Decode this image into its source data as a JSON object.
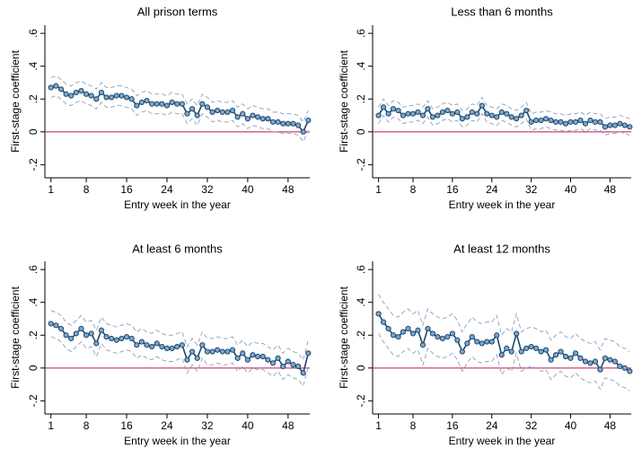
{
  "chart_data": [
    {
      "type": "line",
      "title": "All prison terms",
      "x_label": "Entry week in the year",
      "y_label": "First-stage coefficient",
      "x": [
        1,
        2,
        3,
        4,
        5,
        6,
        7,
        8,
        9,
        10,
        11,
        12,
        13,
        14,
        15,
        16,
        17,
        18,
        19,
        20,
        21,
        22,
        23,
        24,
        25,
        26,
        27,
        28,
        29,
        30,
        31,
        32,
        33,
        34,
        35,
        36,
        37,
        38,
        39,
        40,
        41,
        42,
        43,
        44,
        45,
        46,
        47,
        48,
        49,
        50,
        51,
        52
      ],
      "values": [
        0.27,
        0.28,
        0.26,
        0.23,
        0.22,
        0.24,
        0.25,
        0.23,
        0.22,
        0.2,
        0.24,
        0.21,
        0.21,
        0.22,
        0.22,
        0.21,
        0.2,
        0.16,
        0.18,
        0.19,
        0.17,
        0.17,
        0.17,
        0.16,
        0.18,
        0.17,
        0.17,
        0.11,
        0.14,
        0.1,
        0.17,
        0.15,
        0.12,
        0.13,
        0.12,
        0.12,
        0.13,
        0.09,
        0.11,
        0.08,
        0.1,
        0.09,
        0.08,
        0.08,
        0.06,
        0.06,
        0.05,
        0.05,
        0.05,
        0.04,
        0.0,
        0.07
      ],
      "ci_lower": [
        0.21,
        0.22,
        0.2,
        0.17,
        0.16,
        0.18,
        0.19,
        0.17,
        0.16,
        0.14,
        0.18,
        0.15,
        0.15,
        0.16,
        0.16,
        0.15,
        0.14,
        0.1,
        0.12,
        0.13,
        0.11,
        0.11,
        0.11,
        0.1,
        0.12,
        0.11,
        0.11,
        0.05,
        0.08,
        0.04,
        0.11,
        0.09,
        0.06,
        0.07,
        0.06,
        0.06,
        0.07,
        0.03,
        0.05,
        0.02,
        0.04,
        0.03,
        0.02,
        0.02,
        0.0,
        0.0,
        -0.01,
        -0.01,
        -0.01,
        -0.02,
        -0.06,
        0.01
      ],
      "ci_upper": [
        0.33,
        0.34,
        0.32,
        0.29,
        0.28,
        0.3,
        0.31,
        0.29,
        0.28,
        0.26,
        0.3,
        0.27,
        0.27,
        0.28,
        0.28,
        0.27,
        0.26,
        0.22,
        0.24,
        0.25,
        0.23,
        0.23,
        0.23,
        0.22,
        0.24,
        0.23,
        0.23,
        0.17,
        0.2,
        0.16,
        0.23,
        0.21,
        0.18,
        0.19,
        0.18,
        0.18,
        0.19,
        0.15,
        0.17,
        0.14,
        0.16,
        0.15,
        0.14,
        0.14,
        0.12,
        0.12,
        0.11,
        0.11,
        0.11,
        0.1,
        0.06,
        0.13
      ],
      "color": "#1a476f",
      "marker_fill": "#7fa6c9",
      "ci_color": "#8ca0bd",
      "hline": {
        "value": 0,
        "color": "#c8104e"
      },
      "xlim": [
        -0.2,
        52.3
      ],
      "ylim": [
        -0.28,
        0.65
      ],
      "xticks": [
        1,
        8,
        16,
        24,
        32,
        40,
        48
      ],
      "yticks": [
        {
          "value": -0.2,
          "label": "-.2"
        },
        0,
        {
          "value": 0.2,
          "label": ".2"
        },
        {
          "value": 0.4,
          "label": ".4"
        },
        {
          "value": 0.6,
          "label": ".6"
        }
      ]
    },
    {
      "type": "line",
      "title": "Less than 6 months",
      "x_label": "Entry week in the year",
      "y_label": "First-stage coefficient",
      "x": [
        1,
        2,
        3,
        4,
        5,
        6,
        7,
        8,
        9,
        10,
        11,
        12,
        13,
        14,
        15,
        16,
        17,
        18,
        19,
        20,
        21,
        22,
        23,
        24,
        25,
        26,
        27,
        28,
        29,
        30,
        31,
        32,
        33,
        34,
        35,
        36,
        37,
        38,
        39,
        40,
        41,
        42,
        43,
        44,
        45,
        46,
        47,
        48,
        49,
        50,
        51,
        52
      ],
      "values": [
        0.1,
        0.15,
        0.11,
        0.14,
        0.13,
        0.1,
        0.11,
        0.11,
        0.12,
        0.1,
        0.14,
        0.09,
        0.1,
        0.12,
        0.13,
        0.11,
        0.12,
        0.08,
        0.09,
        0.12,
        0.11,
        0.16,
        0.11,
        0.1,
        0.09,
        0.12,
        0.11,
        0.09,
        0.08,
        0.1,
        0.13,
        0.06,
        0.07,
        0.07,
        0.08,
        0.07,
        0.06,
        0.06,
        0.05,
        0.06,
        0.06,
        0.07,
        0.05,
        0.07,
        0.06,
        0.06,
        0.03,
        0.04,
        0.04,
        0.05,
        0.04,
        0.03
      ],
      "ci_lower": [
        0.05,
        0.1,
        0.06,
        0.09,
        0.08,
        0.05,
        0.06,
        0.06,
        0.07,
        0.05,
        0.09,
        0.04,
        0.05,
        0.07,
        0.08,
        0.06,
        0.07,
        0.03,
        0.04,
        0.07,
        0.06,
        0.11,
        0.06,
        0.05,
        0.04,
        0.07,
        0.06,
        0.04,
        0.03,
        0.05,
        0.08,
        0.01,
        0.02,
        0.02,
        0.03,
        0.02,
        0.01,
        0.01,
        0.0,
        0.01,
        0.01,
        0.02,
        0.0,
        0.02,
        0.01,
        0.01,
        -0.02,
        -0.01,
        -0.01,
        0.0,
        -0.01,
        -0.02
      ],
      "ci_upper": [
        0.15,
        0.2,
        0.16,
        0.19,
        0.18,
        0.15,
        0.16,
        0.16,
        0.17,
        0.15,
        0.19,
        0.14,
        0.15,
        0.17,
        0.18,
        0.16,
        0.17,
        0.13,
        0.14,
        0.17,
        0.16,
        0.21,
        0.16,
        0.15,
        0.14,
        0.17,
        0.16,
        0.14,
        0.13,
        0.15,
        0.18,
        0.11,
        0.12,
        0.12,
        0.13,
        0.12,
        0.11,
        0.11,
        0.1,
        0.11,
        0.11,
        0.12,
        0.1,
        0.12,
        0.11,
        0.11,
        0.08,
        0.09,
        0.09,
        0.1,
        0.09,
        0.08
      ],
      "color": "#1a476f",
      "marker_fill": "#7fa6c9",
      "ci_color": "#8ca0bd",
      "hline": {
        "value": 0,
        "color": "#c8104e"
      },
      "xlim": [
        -0.2,
        52.3
      ],
      "ylim": [
        -0.28,
        0.65
      ],
      "xticks": [
        1,
        8,
        16,
        24,
        32,
        40,
        48
      ],
      "yticks": [
        {
          "value": -0.2,
          "label": "-.2"
        },
        0,
        {
          "value": 0.2,
          "label": ".2"
        },
        {
          "value": 0.4,
          "label": ".4"
        },
        {
          "value": 0.6,
          "label": ".6"
        }
      ]
    },
    {
      "type": "line",
      "title": "At least 6 months",
      "x_label": "Entry week in the year",
      "y_label": "First-stage coefficient",
      "x": [
        1,
        2,
        3,
        4,
        5,
        6,
        7,
        8,
        9,
        10,
        11,
        12,
        13,
        14,
        15,
        16,
        17,
        18,
        19,
        20,
        21,
        22,
        23,
        24,
        25,
        26,
        27,
        28,
        29,
        30,
        31,
        32,
        33,
        34,
        35,
        36,
        37,
        38,
        39,
        40,
        41,
        42,
        43,
        44,
        45,
        46,
        47,
        48,
        49,
        50,
        51,
        52
      ],
      "values": [
        0.27,
        0.26,
        0.24,
        0.2,
        0.18,
        0.21,
        0.24,
        0.2,
        0.21,
        0.15,
        0.23,
        0.19,
        0.18,
        0.17,
        0.18,
        0.19,
        0.18,
        0.14,
        0.16,
        0.14,
        0.13,
        0.15,
        0.13,
        0.12,
        0.12,
        0.13,
        0.14,
        0.05,
        0.1,
        0.06,
        0.14,
        0.1,
        0.1,
        0.11,
        0.1,
        0.1,
        0.11,
        0.06,
        0.09,
        0.05,
        0.08,
        0.07,
        0.07,
        0.05,
        0.03,
        0.06,
        0.01,
        0.04,
        0.02,
        0.01,
        -0.03,
        0.09
      ],
      "ci_lower": [
        0.19,
        0.18,
        0.16,
        0.12,
        0.1,
        0.13,
        0.16,
        0.12,
        0.13,
        0.07,
        0.15,
        0.11,
        0.1,
        0.09,
        0.1,
        0.11,
        0.1,
        0.06,
        0.08,
        0.06,
        0.05,
        0.07,
        0.05,
        0.04,
        0.04,
        0.05,
        0.06,
        -0.03,
        0.02,
        -0.02,
        0.06,
        0.02,
        0.02,
        0.03,
        0.02,
        0.02,
        0.03,
        -0.02,
        0.01,
        -0.03,
        0.0,
        -0.01,
        -0.01,
        -0.03,
        -0.05,
        -0.02,
        -0.07,
        -0.04,
        -0.06,
        -0.07,
        -0.11,
        0.01
      ],
      "ci_upper": [
        0.35,
        0.34,
        0.32,
        0.28,
        0.26,
        0.29,
        0.32,
        0.28,
        0.29,
        0.23,
        0.31,
        0.27,
        0.26,
        0.25,
        0.26,
        0.27,
        0.26,
        0.22,
        0.24,
        0.22,
        0.21,
        0.23,
        0.21,
        0.2,
        0.2,
        0.21,
        0.22,
        0.13,
        0.18,
        0.14,
        0.22,
        0.18,
        0.18,
        0.19,
        0.18,
        0.18,
        0.19,
        0.14,
        0.17,
        0.13,
        0.16,
        0.15,
        0.15,
        0.13,
        0.11,
        0.14,
        0.09,
        0.12,
        0.1,
        0.09,
        0.05,
        0.17
      ],
      "color": "#1a476f",
      "marker_fill": "#7fa6c9",
      "ci_color": "#8ca0bd",
      "hline": {
        "value": 0,
        "color": "#c8104e"
      },
      "xlim": [
        -0.2,
        52.3
      ],
      "ylim": [
        -0.28,
        0.65
      ],
      "xticks": [
        1,
        8,
        16,
        24,
        32,
        40,
        48
      ],
      "yticks": [
        {
          "value": -0.2,
          "label": "-.2"
        },
        0,
        {
          "value": 0.2,
          "label": ".2"
        },
        {
          "value": 0.4,
          "label": ".4"
        },
        {
          "value": 0.6,
          "label": ".6"
        }
      ]
    },
    {
      "type": "line",
      "title": "At least 12 months",
      "x_label": "Entry week in the year",
      "y_label": "First-stage coefficient",
      "x": [
        1,
        2,
        3,
        4,
        5,
        6,
        7,
        8,
        9,
        10,
        11,
        12,
        13,
        14,
        15,
        16,
        17,
        18,
        19,
        20,
        21,
        22,
        23,
        24,
        25,
        26,
        27,
        28,
        29,
        30,
        31,
        32,
        33,
        34,
        35,
        36,
        37,
        38,
        39,
        40,
        41,
        42,
        43,
        44,
        45,
        46,
        47,
        48,
        49,
        50,
        51,
        52
      ],
      "values": [
        0.33,
        0.28,
        0.24,
        0.2,
        0.19,
        0.22,
        0.24,
        0.21,
        0.23,
        0.14,
        0.24,
        0.21,
        0.19,
        0.18,
        0.19,
        0.21,
        0.17,
        0.1,
        0.15,
        0.19,
        0.16,
        0.15,
        0.16,
        0.16,
        0.2,
        0.08,
        0.12,
        0.1,
        0.21,
        0.1,
        0.12,
        0.13,
        0.12,
        0.1,
        0.11,
        0.05,
        0.08,
        0.1,
        0.07,
        0.06,
        0.09,
        0.06,
        0.04,
        0.03,
        0.04,
        -0.01,
        0.06,
        0.05,
        0.04,
        0.01,
        0.0,
        -0.02
      ],
      "ci_lower": [
        0.21,
        0.16,
        0.12,
        0.08,
        0.07,
        0.1,
        0.12,
        0.09,
        0.11,
        0.02,
        0.12,
        0.09,
        0.07,
        0.06,
        0.07,
        0.09,
        0.05,
        -0.02,
        0.03,
        0.07,
        0.04,
        0.03,
        0.04,
        0.04,
        0.08,
        -0.04,
        0.0,
        -0.02,
        0.09,
        -0.02,
        0.0,
        0.01,
        0.0,
        -0.02,
        -0.01,
        -0.07,
        -0.04,
        -0.02,
        -0.05,
        -0.06,
        -0.03,
        -0.06,
        -0.08,
        -0.09,
        -0.08,
        -0.13,
        -0.06,
        -0.07,
        -0.08,
        -0.11,
        -0.12,
        -0.14
      ],
      "ci_upper": [
        0.45,
        0.4,
        0.36,
        0.32,
        0.31,
        0.34,
        0.36,
        0.33,
        0.35,
        0.26,
        0.36,
        0.33,
        0.31,
        0.3,
        0.31,
        0.33,
        0.29,
        0.22,
        0.27,
        0.31,
        0.28,
        0.27,
        0.28,
        0.28,
        0.32,
        0.2,
        0.24,
        0.22,
        0.33,
        0.22,
        0.24,
        0.25,
        0.24,
        0.22,
        0.23,
        0.17,
        0.2,
        0.22,
        0.19,
        0.18,
        0.21,
        0.18,
        0.16,
        0.15,
        0.16,
        0.11,
        0.18,
        0.17,
        0.16,
        0.13,
        0.12,
        0.1
      ],
      "color": "#1a476f",
      "marker_fill": "#7fa6c9",
      "ci_color": "#8ca0bd",
      "hline": {
        "value": 0,
        "color": "#c8104e"
      },
      "xlim": [
        -0.2,
        52.3
      ],
      "ylim": [
        -0.28,
        0.65
      ],
      "xticks": [
        1,
        8,
        16,
        24,
        32,
        40,
        48
      ],
      "yticks": [
        {
          "value": -0.2,
          "label": "-.2"
        },
        0,
        {
          "value": 0.2,
          "label": ".2"
        },
        {
          "value": 0.4,
          "label": ".4"
        },
        {
          "value": 0.6,
          "label": ".6"
        }
      ]
    }
  ]
}
